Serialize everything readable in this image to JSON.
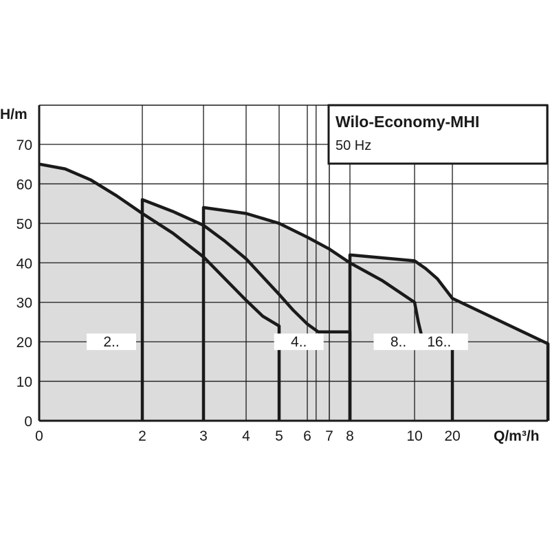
{
  "chart_data": {
    "type": "area",
    "title": "Wilo-Economy-MHI",
    "subtitle": "50 Hz",
    "ylabel": "H/m",
    "xlabel": "Q/m³/h",
    "ylim": [
      0,
      70
    ],
    "yticks": [
      0,
      10,
      20,
      30,
      40,
      50,
      60,
      70
    ],
    "xlim": [
      0,
      25
    ],
    "x_scale": "irregular",
    "x_tick_positions": [
      0,
      2,
      3,
      4,
      5,
      6,
      7,
      8,
      10,
      20
    ],
    "xticks": [
      {
        "value": 0,
        "label": "0"
      },
      {
        "value": 2,
        "label": "2"
      },
      {
        "value": 3,
        "label": "3"
      },
      {
        "value": 4,
        "label": "4"
      },
      {
        "value": 5,
        "label": "5"
      },
      {
        "value": 6,
        "label": "6"
      },
      {
        "value": 7,
        "label": "7"
      },
      {
        "value": 8,
        "label": "8"
      },
      {
        "value": 10,
        "label": "10"
      },
      {
        "value": 20,
        "label": "20"
      }
    ],
    "x_extra_grid": [
      6.4,
      7.0
    ],
    "grid": true,
    "series": [
      {
        "name": "2..",
        "label_x": 1.4,
        "label_y": 20,
        "x": [
          0,
          0.5,
          1,
          1.5,
          2,
          2.5,
          3,
          3.5,
          4,
          4.5,
          5,
          5,
          5
        ],
        "y": [
          65,
          63.8,
          61,
          57,
          52.5,
          47.5,
          41.5,
          36,
          30.5,
          26.5,
          24,
          24,
          0
        ]
      },
      {
        "name": "4..",
        "label_x": 5.7,
        "label_y": 20,
        "x": [
          2,
          2,
          2.5,
          3,
          3.5,
          4,
          4.5,
          5,
          5.5,
          6,
          6.5,
          7,
          7.5,
          8,
          8
        ],
        "y": [
          0,
          56,
          53,
          49.5,
          45.5,
          41,
          36.5,
          32,
          28,
          24.5,
          22.5,
          22.5,
          22.5,
          22.5,
          0
        ]
      },
      {
        "name": "8..",
        "label_x": 9.5,
        "label_y": 20,
        "x": [
          3,
          3,
          4,
          5,
          6,
          7,
          8,
          9,
          10,
          11,
          12,
          13,
          14,
          15,
          16,
          20,
          20
        ],
        "y": [
          0,
          54,
          52.5,
          50,
          46.5,
          43.5,
          40,
          35.5,
          30,
          25,
          21,
          21,
          21,
          21,
          21,
          21,
          0
        ]
      },
      {
        "name": "16..",
        "label_x": 16.5,
        "label_y": 20,
        "x": [
          8,
          8,
          10,
          13,
          16,
          20,
          25,
          25
        ],
        "y": [
          0,
          42,
          40.5,
          38.5,
          36,
          31,
          19.5,
          0
        ]
      }
    ]
  }
}
